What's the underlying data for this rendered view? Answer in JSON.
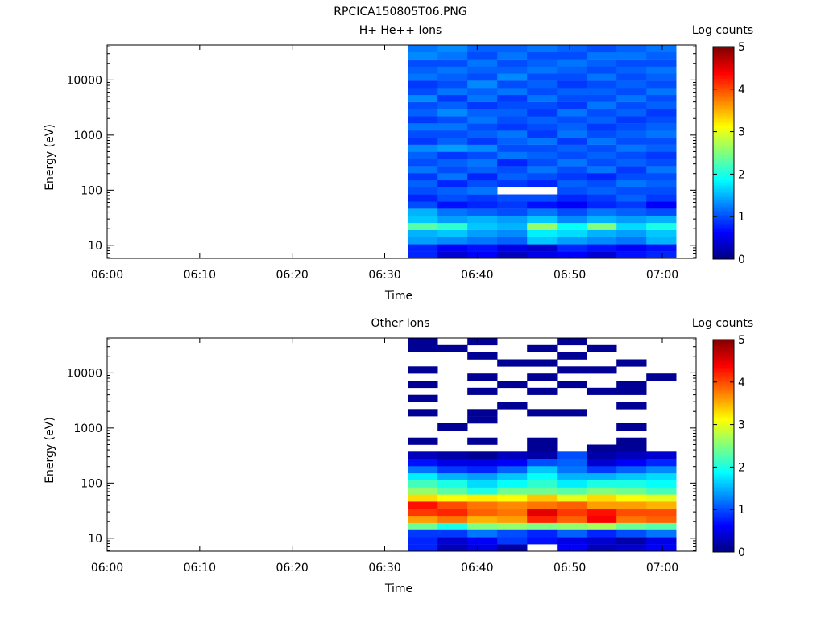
{
  "title": "RPCICA150805T06.PNG",
  "colorbar_label": "Log counts",
  "chart_data": [
    {
      "type": "heatmap",
      "title": "H+ He++ Ions",
      "xlabel": "Time",
      "ylabel": "Energy (eV)",
      "x_ticks": [
        "06:00",
        "06:10",
        "06:20",
        "06:30",
        "06:40",
        "06:50",
        "07:00"
      ],
      "y_scale": "log",
      "y_ticks": [
        "10",
        "100",
        "1000",
        "10000"
      ],
      "ylim": [
        5.8,
        43000
      ],
      "xlim": [
        "06:00",
        "06:03+60"
      ],
      "colorbar": {
        "label": "Log counts",
        "min": 0,
        "max": 5,
        "ticks": [
          "0",
          "1",
          "2",
          "3",
          "4",
          "5"
        ]
      },
      "data_time_range": [
        "06:32:30",
        "07:01:30"
      ],
      "columns": 9,
      "note_levels": "log counts per column, low-to-high energy",
      "levels": [
        [
          0.8,
          0.8,
          1.4,
          1.5,
          2.3,
          1.6,
          1.5,
          1.0,
          0.8,
          1.0,
          1.1,
          0.9,
          1.2,
          1.0,
          1.1,
          1.3,
          0.9,
          1.0,
          1.2,
          0.9,
          1.1,
          1.0,
          1.3,
          1.0,
          0.9,
          1.2,
          1.1,
          1.0,
          1.3,
          1.2
        ],
        [
          0.4,
          0.6,
          1.3,
          1.6,
          2.1,
          1.4,
          1.2,
          0.7,
          1.0,
          1.1,
          0.8,
          1.2,
          1.0,
          1.1,
          0.9,
          1.4,
          1.1,
          1.0,
          1.2,
          1.0,
          1.3,
          1.1,
          0.9,
          1.2,
          1.0,
          1.1,
          1.2,
          1.0,
          1.2,
          1.3
        ],
        [
          0.6,
          0.7,
          1.2,
          1.4,
          1.6,
          1.5,
          1.1,
          0.8,
          0.9,
          1.2,
          1.0,
          0.8,
          1.1,
          1.2,
          1.0,
          1.3,
          0.9,
          1.1,
          1.0,
          1.2,
          1.1,
          0.9,
          1.2,
          1.1,
          1.3,
          1.0,
          1.1,
          1.2,
          1.0,
          1.1
        ],
        [
          0.3,
          0.5,
          1.1,
          1.3,
          1.5,
          1.4,
          1.0,
          0.9,
          1.0,
          -1,
          0.9,
          1.1,
          1.0,
          0.8,
          1.2,
          1.0,
          1.1,
          1.2,
          0.9,
          1.0,
          1.1,
          1.0,
          0.9,
          1.2,
          1.0,
          1.3,
          1.1,
          1.0,
          1.2,
          1.1
        ],
        [
          0.5,
          0.4,
          1.6,
          1.8,
          2.6,
          1.6,
          1.2,
          0.7,
          1.0,
          -1,
          0.8,
          1.0,
          1.2,
          1.0,
          1.1,
          1.0,
          1.2,
          0.9,
          1.0,
          1.1,
          0.9,
          1.0,
          1.2,
          1.0,
          1.1,
          1.0,
          1.2,
          1.1,
          1.0,
          1.2
        ],
        [
          0.6,
          0.8,
          1.4,
          1.7,
          1.9,
          1.3,
          1.0,
          0.6,
          0.8,
          1.0,
          1.1,
          0.9,
          1.0,
          1.2,
          1.0,
          1.1,
          0.9,
          1.2,
          1.1,
          1.0,
          1.2,
          0.9,
          1.0,
          1.1,
          0.9,
          1.0,
          1.1,
          1.2,
          1.0,
          1.1
        ],
        [
          0.4,
          0.7,
          1.3,
          1.5,
          2.5,
          1.5,
          1.2,
          0.8,
          0.9,
          1.1,
          1.0,
          0.8,
          1.2,
          1.0,
          1.1,
          1.0,
          1.2,
          1.0,
          0.9,
          1.1,
          1.0,
          1.2,
          1.0,
          1.1,
          1.0,
          1.2,
          1.0,
          1.1,
          1.2,
          1.0
        ],
        [
          0.7,
          0.6,
          1.2,
          1.4,
          1.7,
          1.4,
          1.1,
          0.9,
          1.1,
          1.0,
          1.2,
          1.0,
          0.9,
          1.1,
          1.0,
          1.2,
          1.0,
          1.1,
          1.0,
          0.9,
          1.1,
          1.0,
          1.2,
          1.0,
          1.1,
          1.0,
          1.1,
          1.0,
          1.2,
          1.1
        ],
        [
          0.8,
          0.7,
          1.5,
          1.6,
          2.0,
          1.5,
          1.0,
          0.6,
          0.9,
          1.0,
          1.1,
          1.0,
          1.2,
          1.0,
          0.9,
          1.1,
          1.0,
          1.2,
          1.1,
          1.0,
          0.9,
          1.1,
          1.0,
          1.2,
          1.0,
          1.1,
          1.2,
          1.0,
          1.1,
          1.2
        ]
      ]
    },
    {
      "type": "heatmap",
      "title": "Other Ions",
      "xlabel": "Time",
      "ylabel": "Energy (eV)",
      "x_ticks": [
        "06:00",
        "06:10",
        "06:20",
        "06:30",
        "06:40",
        "06:50",
        "07:00"
      ],
      "y_scale": "log",
      "y_ticks": [
        "10",
        "100",
        "1000",
        "10000"
      ],
      "ylim": [
        5.8,
        43000
      ],
      "colorbar": {
        "label": "Log counts",
        "min": 0,
        "max": 5,
        "ticks": [
          "0",
          "1",
          "2",
          "3",
          "4",
          "5"
        ]
      },
      "data_time_range": [
        "06:32:30",
        "07:01:30"
      ],
      "columns": 9,
      "note_levels": "log counts per column, low-to-high energy; -1 = no counts",
      "levels": [
        [
          0.8,
          0.8,
          0.9,
          2.4,
          3.6,
          4.1,
          4.3,
          3.3,
          2.6,
          2.2,
          1.8,
          1.2,
          0.7,
          0.3,
          -1,
          0.1,
          -1,
          -1,
          -1,
          0.1,
          -1,
          0.1,
          -1,
          0.1,
          -1,
          0.1,
          -1,
          -1,
          0.1,
          0.1
        ],
        [
          0.3,
          0.4,
          0.9,
          2.0,
          3.8,
          4.2,
          4.0,
          3.1,
          2.3,
          2.0,
          1.5,
          0.9,
          0.5,
          0.2,
          -1,
          -1,
          -1,
          0.1,
          -1,
          -1,
          -1,
          -1,
          -1,
          -1,
          -1,
          -1,
          -1,
          -1,
          0.1,
          -1
        ],
        [
          0.5,
          0.6,
          1.2,
          2.5,
          3.5,
          3.9,
          3.8,
          3.2,
          2.0,
          1.7,
          1.4,
          0.8,
          0.5,
          0.1,
          -1,
          0.1,
          -1,
          -1,
          0.1,
          0.1,
          -1,
          -1,
          0.1,
          -1,
          0.1,
          -1,
          -1,
          0.1,
          -1,
          0.1
        ],
        [
          0.2,
          0.9,
          1.0,
          2.6,
          3.6,
          3.8,
          3.7,
          3.1,
          2.4,
          1.9,
          1.6,
          1.1,
          0.6,
          0.3,
          -1,
          -1,
          -1,
          -1,
          -1,
          -1,
          0.1,
          -1,
          -1,
          0.1,
          -1,
          -1,
          0.1,
          -1,
          -1,
          -1
        ],
        [
          -1,
          0.7,
          0.8,
          2.5,
          4.2,
          4.5,
          3.8,
          3.4,
          2.4,
          2.1,
          1.9,
          1.6,
          1.0,
          0.2,
          0.1,
          0.1,
          -1,
          -1,
          -1,
          0.1,
          -1,
          -1,
          0.1,
          -1,
          0.1,
          -1,
          0.1,
          -1,
          0.1,
          -1
        ],
        [
          0.6,
          0.5,
          1.1,
          2.6,
          3.9,
          4.1,
          3.9,
          3.0,
          2.3,
          1.8,
          1.5,
          1.2,
          1.1,
          1.0,
          -1,
          -1,
          -1,
          -1,
          -1,
          0.1,
          -1,
          -1,
          -1,
          0.1,
          -1,
          0.1,
          -1,
          0.1,
          -1,
          0.1
        ],
        [
          0.3,
          0.4,
          0.8,
          2.7,
          4.4,
          4.3,
          3.6,
          3.3,
          2.5,
          2.0,
          1.5,
          0.9,
          0.4,
          0.2,
          0.1,
          -1,
          -1,
          -1,
          -1,
          -1,
          -1,
          -1,
          0.1,
          -1,
          -1,
          0.1,
          -1,
          -1,
          0.1,
          -1
        ],
        [
          0.4,
          0.2,
          1.0,
          2.4,
          3.8,
          4.0,
          3.6,
          3.1,
          2.4,
          2.0,
          1.6,
          1.1,
          0.6,
          0.3,
          0.1,
          0.1,
          -1,
          0.1,
          -1,
          -1,
          0.1,
          -1,
          0.1,
          0.1,
          -1,
          -1,
          0.1,
          -1,
          -1,
          -1
        ],
        [
          0.6,
          0.5,
          1.2,
          2.3,
          3.9,
          4.0,
          3.5,
          3.0,
          2.2,
          1.9,
          1.7,
          1.3,
          0.8,
          0.4,
          -1,
          -1,
          -1,
          -1,
          -1,
          -1,
          -1,
          -1,
          -1,
          -1,
          0.1,
          -1,
          -1,
          -1,
          -1,
          -1
        ]
      ]
    }
  ]
}
